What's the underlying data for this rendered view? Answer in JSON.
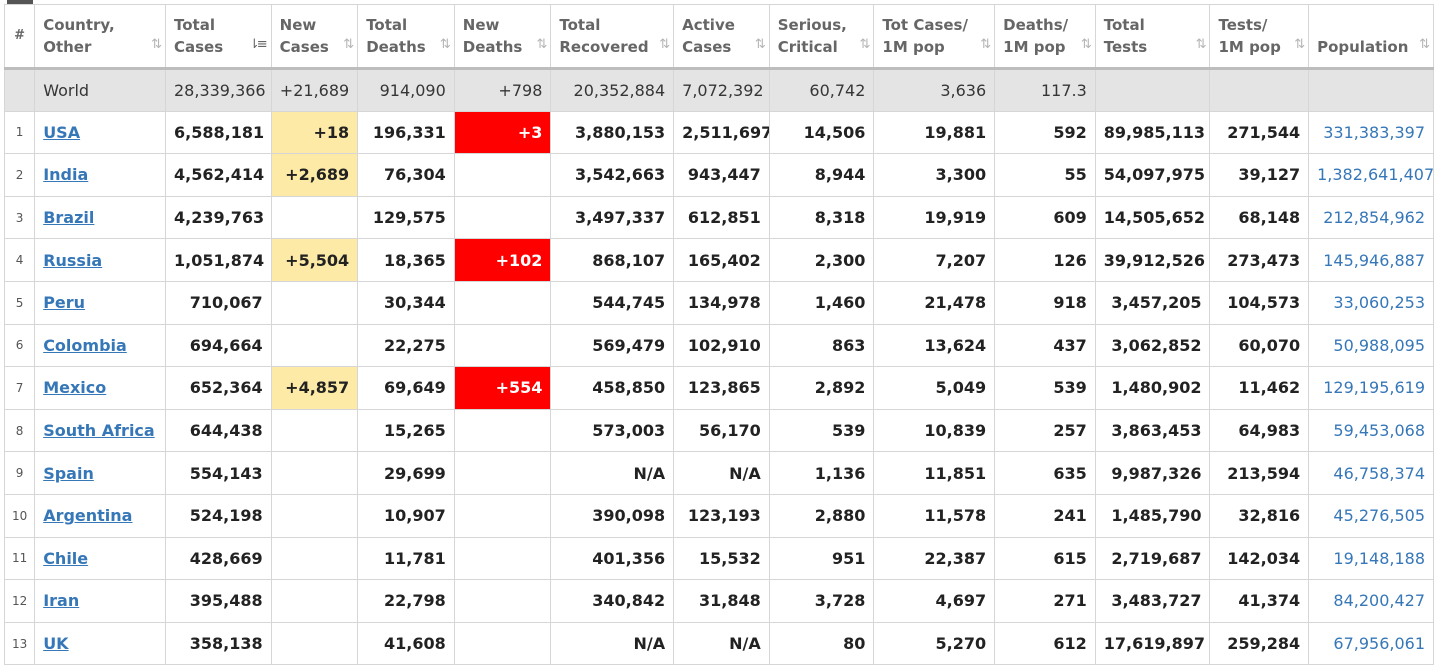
{
  "headers": [
    {
      "key": "num",
      "label1": "#",
      "label2": ""
    },
    {
      "key": "country",
      "label1": "Country,",
      "label2": "Other"
    },
    {
      "key": "total_cases",
      "label1": "Total",
      "label2": "Cases"
    },
    {
      "key": "new_cases",
      "label1": "New",
      "label2": "Cases"
    },
    {
      "key": "total_deaths",
      "label1": "Total",
      "label2": "Deaths"
    },
    {
      "key": "new_deaths",
      "label1": "New",
      "label2": "Deaths"
    },
    {
      "key": "total_recovered",
      "label1": "Total",
      "label2": "Recovered"
    },
    {
      "key": "active_cases",
      "label1": "Active",
      "label2": "Cases"
    },
    {
      "key": "serious",
      "label1": "Serious,",
      "label2": "Critical"
    },
    {
      "key": "tot_cases_1m",
      "label1": "Tot Cases/",
      "label2": "1M pop"
    },
    {
      "key": "deaths_1m",
      "label1": "Deaths/",
      "label2": "1M pop"
    },
    {
      "key": "total_tests",
      "label1": "Total",
      "label2": "Tests"
    },
    {
      "key": "tests_1m",
      "label1": "Tests/",
      "label2": "1M pop"
    },
    {
      "key": "population",
      "label1": "",
      "label2": "Population"
    }
  ],
  "sort_icons": {
    "default": "⇅",
    "active": "⇂≡"
  },
  "colors": {
    "link": "#3677b8",
    "new_cases_highlight": "#fdeaa6",
    "new_deaths_highlight": "#ff0000",
    "world_row_bg": "#e4e4e4"
  },
  "world": {
    "country": "World",
    "total_cases": "28,339,366",
    "new_cases": "+21,689",
    "total_deaths": "914,090",
    "new_deaths": "+798",
    "total_recovered": "20,352,884",
    "active_cases": "7,072,392",
    "serious": "60,742",
    "tot_cases_1m": "3,636",
    "deaths_1m": "117.3",
    "total_tests": "",
    "tests_1m": "",
    "population": ""
  },
  "rows": [
    {
      "num": "1",
      "country": "USA",
      "total_cases": "6,588,181",
      "new_cases": "+18",
      "total_deaths": "196,331",
      "new_deaths": "+3",
      "total_recovered": "3,880,153",
      "active_cases": "2,511,697",
      "serious": "14,506",
      "tot_cases_1m": "19,881",
      "deaths_1m": "592",
      "total_tests": "89,985,113",
      "tests_1m": "271,544",
      "population": "331,383,397"
    },
    {
      "num": "2",
      "country": "India",
      "total_cases": "4,562,414",
      "new_cases": "+2,689",
      "total_deaths": "76,304",
      "new_deaths": "",
      "total_recovered": "3,542,663",
      "active_cases": "943,447",
      "serious": "8,944",
      "tot_cases_1m": "3,300",
      "deaths_1m": "55",
      "total_tests": "54,097,975",
      "tests_1m": "39,127",
      "population": "1,382,641,407"
    },
    {
      "num": "3",
      "country": "Brazil",
      "total_cases": "4,239,763",
      "new_cases": "",
      "total_deaths": "129,575",
      "new_deaths": "",
      "total_recovered": "3,497,337",
      "active_cases": "612,851",
      "serious": "8,318",
      "tot_cases_1m": "19,919",
      "deaths_1m": "609",
      "total_tests": "14,505,652",
      "tests_1m": "68,148",
      "population": "212,854,962"
    },
    {
      "num": "4",
      "country": "Russia",
      "total_cases": "1,051,874",
      "new_cases": "+5,504",
      "total_deaths": "18,365",
      "new_deaths": "+102",
      "total_recovered": "868,107",
      "active_cases": "165,402",
      "serious": "2,300",
      "tot_cases_1m": "7,207",
      "deaths_1m": "126",
      "total_tests": "39,912,526",
      "tests_1m": "273,473",
      "population": "145,946,887"
    },
    {
      "num": "5",
      "country": "Peru",
      "total_cases": "710,067",
      "new_cases": "",
      "total_deaths": "30,344",
      "new_deaths": "",
      "total_recovered": "544,745",
      "active_cases": "134,978",
      "serious": "1,460",
      "tot_cases_1m": "21,478",
      "deaths_1m": "918",
      "total_tests": "3,457,205",
      "tests_1m": "104,573",
      "population": "33,060,253"
    },
    {
      "num": "6",
      "country": "Colombia",
      "total_cases": "694,664",
      "new_cases": "",
      "total_deaths": "22,275",
      "new_deaths": "",
      "total_recovered": "569,479",
      "active_cases": "102,910",
      "serious": "863",
      "tot_cases_1m": "13,624",
      "deaths_1m": "437",
      "total_tests": "3,062,852",
      "tests_1m": "60,070",
      "population": "50,988,095"
    },
    {
      "num": "7",
      "country": "Mexico",
      "total_cases": "652,364",
      "new_cases": "+4,857",
      "total_deaths": "69,649",
      "new_deaths": "+554",
      "total_recovered": "458,850",
      "active_cases": "123,865",
      "serious": "2,892",
      "tot_cases_1m": "5,049",
      "deaths_1m": "539",
      "total_tests": "1,480,902",
      "tests_1m": "11,462",
      "population": "129,195,619"
    },
    {
      "num": "8",
      "country": "South Africa",
      "total_cases": "644,438",
      "new_cases": "",
      "total_deaths": "15,265",
      "new_deaths": "",
      "total_recovered": "573,003",
      "active_cases": "56,170",
      "serious": "539",
      "tot_cases_1m": "10,839",
      "deaths_1m": "257",
      "total_tests": "3,863,453",
      "tests_1m": "64,983",
      "population": "59,453,068"
    },
    {
      "num": "9",
      "country": "Spain",
      "total_cases": "554,143",
      "new_cases": "",
      "total_deaths": "29,699",
      "new_deaths": "",
      "total_recovered": "N/A",
      "active_cases": "N/A",
      "serious": "1,136",
      "tot_cases_1m": "11,851",
      "deaths_1m": "635",
      "total_tests": "9,987,326",
      "tests_1m": "213,594",
      "population": "46,758,374"
    },
    {
      "num": "10",
      "country": "Argentina",
      "total_cases": "524,198",
      "new_cases": "",
      "total_deaths": "10,907",
      "new_deaths": "",
      "total_recovered": "390,098",
      "active_cases": "123,193",
      "serious": "2,880",
      "tot_cases_1m": "11,578",
      "deaths_1m": "241",
      "total_tests": "1,485,790",
      "tests_1m": "32,816",
      "population": "45,276,505"
    },
    {
      "num": "11",
      "country": "Chile",
      "total_cases": "428,669",
      "new_cases": "",
      "total_deaths": "11,781",
      "new_deaths": "",
      "total_recovered": "401,356",
      "active_cases": "15,532",
      "serious": "951",
      "tot_cases_1m": "22,387",
      "deaths_1m": "615",
      "total_tests": "2,719,687",
      "tests_1m": "142,034",
      "population": "19,148,188"
    },
    {
      "num": "12",
      "country": "Iran",
      "total_cases": "395,488",
      "new_cases": "",
      "total_deaths": "22,798",
      "new_deaths": "",
      "total_recovered": "340,842",
      "active_cases": "31,848",
      "serious": "3,728",
      "tot_cases_1m": "4,697",
      "deaths_1m": "271",
      "total_tests": "3,483,727",
      "tests_1m": "41,374",
      "population": "84,200,427"
    },
    {
      "num": "13",
      "country": "UK",
      "total_cases": "358,138",
      "new_cases": "",
      "total_deaths": "41,608",
      "new_deaths": "",
      "total_recovered": "N/A",
      "active_cases": "N/A",
      "serious": "80",
      "tot_cases_1m": "5,270",
      "deaths_1m": "612",
      "total_tests": "17,619,897",
      "tests_1m": "259,284",
      "population": "67,956,061"
    }
  ]
}
